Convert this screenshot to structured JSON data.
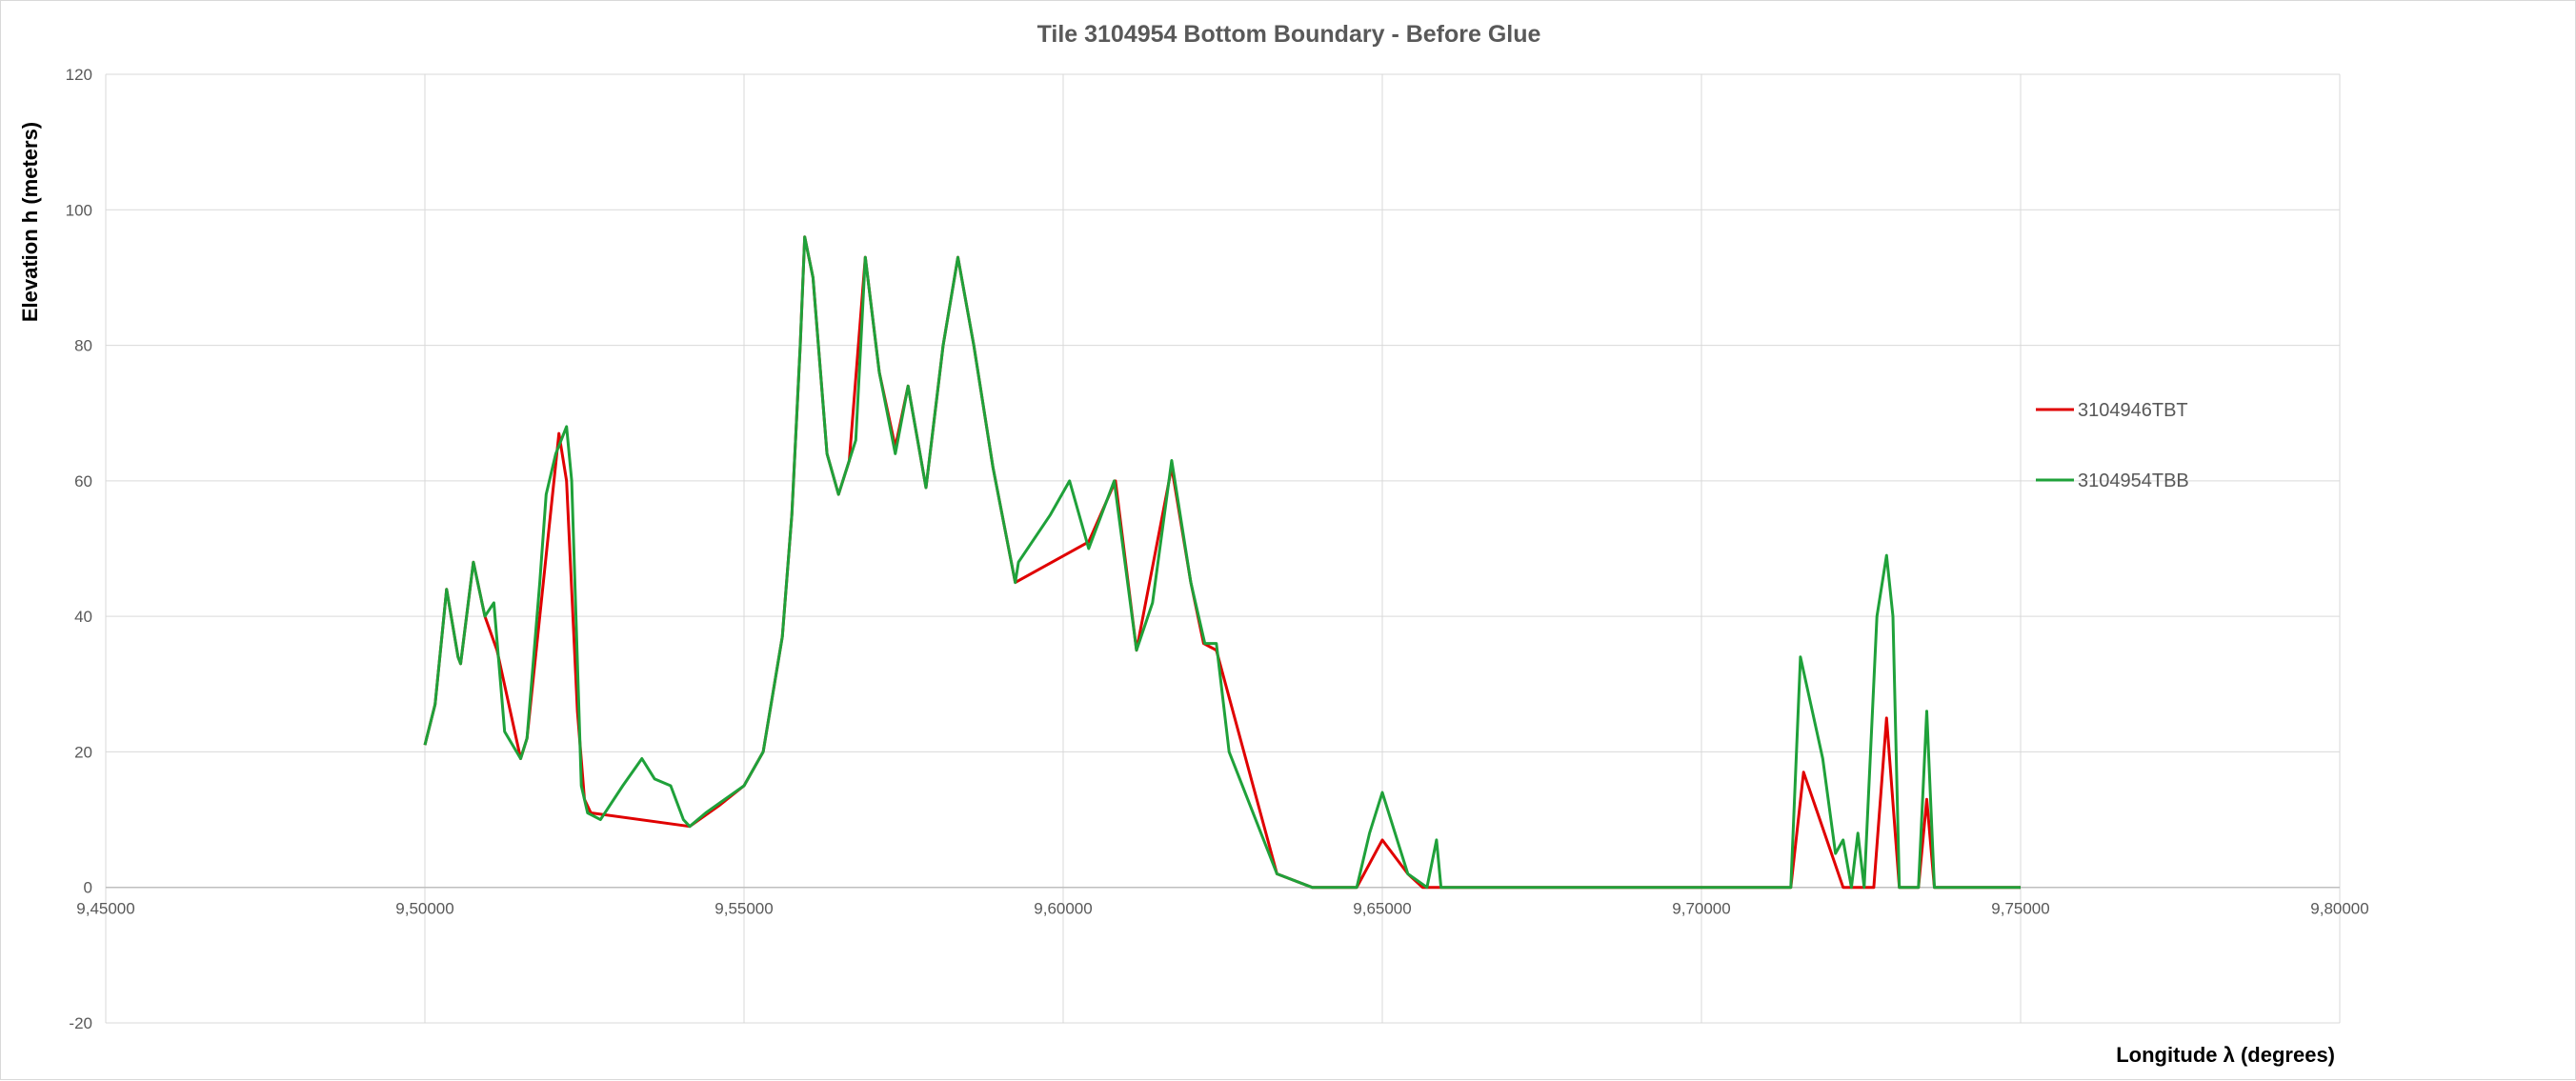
{
  "chart_data": {
    "type": "line",
    "title": "Tile 3104954 Bottom  Boundary - Before Glue",
    "xlabel": "Longitude λ (degrees)",
    "ylabel": "Elevation h  (meters)",
    "xlim": [
      9.45,
      9.8
    ],
    "ylim": [
      -20,
      120
    ],
    "x_ticks": [
      9.45,
      9.5,
      9.55,
      9.6,
      9.65,
      9.7,
      9.75,
      9.8
    ],
    "x_tick_labels": [
      "9,45000",
      "9,50000",
      "9,55000",
      "9,60000",
      "9,65000",
      "9,70000",
      "9,75000",
      "9,80000"
    ],
    "y_ticks": [
      -20,
      0,
      20,
      40,
      60,
      80,
      100,
      120
    ],
    "y_tick_labels": [
      "-20",
      "0",
      "20",
      "40",
      "60",
      "80",
      "100",
      "120"
    ],
    "grid": true,
    "legend_position": "right",
    "series": [
      {
        "name": "3104946TBT",
        "color": "#e00000",
        "points": [
          [
            9.5,
            21
          ],
          [
            9.5016,
            27
          ],
          [
            9.5034,
            44
          ],
          [
            9.5052,
            34
          ],
          [
            9.5056,
            33
          ],
          [
            9.5076,
            48
          ],
          [
            9.5094,
            40
          ],
          [
            9.5113,
            35
          ],
          [
            9.515,
            19
          ],
          [
            9.516,
            22
          ],
          [
            9.521,
            67
          ],
          [
            9.5222,
            60
          ],
          [
            9.5239,
            26
          ],
          [
            9.525,
            13
          ],
          [
            9.526,
            11
          ],
          [
            9.5415,
            9
          ],
          [
            9.546,
            12
          ],
          [
            9.55,
            15
          ],
          [
            9.553,
            20
          ],
          [
            9.556,
            37
          ],
          [
            9.5575,
            55
          ],
          [
            9.5588,
            80
          ],
          [
            9.5595,
            96
          ],
          [
            9.5608,
            90
          ],
          [
            9.563,
            64
          ],
          [
            9.5648,
            58
          ],
          [
            9.5665,
            63
          ],
          [
            9.569,
            93
          ],
          [
            9.5712,
            76
          ],
          [
            9.5737,
            65
          ],
          [
            9.5757,
            74
          ],
          [
            9.5785,
            59
          ],
          [
            9.5812,
            80
          ],
          [
            9.5835,
            93
          ],
          [
            9.586,
            80
          ],
          [
            9.589,
            62
          ],
          [
            9.5925,
            45
          ],
          [
            9.604,
            51
          ],
          [
            9.6082,
            60
          ],
          [
            9.6115,
            35
          ],
          [
            9.617,
            62
          ],
          [
            9.62,
            45
          ],
          [
            9.622,
            36
          ],
          [
            9.624,
            35
          ],
          [
            9.6335,
            2
          ],
          [
            9.639,
            0
          ],
          [
            9.646,
            0
          ],
          [
            9.65,
            7
          ],
          [
            9.654,
            2
          ],
          [
            9.6563,
            0
          ],
          [
            9.714,
            0
          ],
          [
            9.716,
            17
          ],
          [
            9.7222,
            0
          ],
          [
            9.727,
            0
          ],
          [
            9.729,
            25
          ],
          [
            9.731,
            0
          ],
          [
            9.734,
            0
          ],
          [
            9.7353,
            13
          ],
          [
            9.7365,
            0
          ],
          [
            9.75,
            0
          ]
        ]
      },
      {
        "name": "3104954TBB",
        "color": "#1fa13a",
        "points": [
          [
            9.5,
            21
          ],
          [
            9.5016,
            27
          ],
          [
            9.5034,
            44
          ],
          [
            9.5052,
            34
          ],
          [
            9.5056,
            33
          ],
          [
            9.5076,
            48
          ],
          [
            9.5094,
            40
          ],
          [
            9.5108,
            42
          ],
          [
            9.5125,
            23
          ],
          [
            9.515,
            19
          ],
          [
            9.516,
            22
          ],
          [
            9.518,
            45
          ],
          [
            9.519,
            58
          ],
          [
            9.5205,
            64
          ],
          [
            9.5222,
            68
          ],
          [
            9.523,
            60
          ],
          [
            9.5245,
            15
          ],
          [
            9.5255,
            11
          ],
          [
            9.5275,
            10
          ],
          [
            9.531,
            15
          ],
          [
            9.534,
            19
          ],
          [
            9.536,
            16
          ],
          [
            9.5385,
            15
          ],
          [
            9.5405,
            10
          ],
          [
            9.5415,
            9
          ],
          [
            9.544,
            11
          ],
          [
            9.55,
            15
          ],
          [
            9.553,
            20
          ],
          [
            9.556,
            37
          ],
          [
            9.5575,
            55
          ],
          [
            9.5588,
            80
          ],
          [
            9.5595,
            96
          ],
          [
            9.5608,
            90
          ],
          [
            9.563,
            64
          ],
          [
            9.5648,
            58
          ],
          [
            9.5665,
            63
          ],
          [
            9.5675,
            66
          ],
          [
            9.569,
            93
          ],
          [
            9.5712,
            76
          ],
          [
            9.5737,
            64
          ],
          [
            9.5757,
            74
          ],
          [
            9.5785,
            59
          ],
          [
            9.5812,
            80
          ],
          [
            9.5835,
            93
          ],
          [
            9.586,
            80
          ],
          [
            9.589,
            62
          ],
          [
            9.5925,
            45
          ],
          [
            9.593,
            48
          ],
          [
            9.598,
            55
          ],
          [
            9.601,
            60
          ],
          [
            9.604,
            50
          ],
          [
            9.608,
            60
          ],
          [
            9.6115,
            35
          ],
          [
            9.614,
            42
          ],
          [
            9.617,
            63
          ],
          [
            9.62,
            45
          ],
          [
            9.6222,
            36
          ],
          [
            9.624,
            36
          ],
          [
            9.626,
            20
          ],
          [
            9.6335,
            2
          ],
          [
            9.639,
            0
          ],
          [
            9.646,
            0
          ],
          [
            9.648,
            8
          ],
          [
            9.65,
            14
          ],
          [
            9.654,
            2
          ],
          [
            9.657,
            0
          ],
          [
            9.6585,
            7
          ],
          [
            9.6592,
            0
          ],
          [
            9.714,
            0
          ],
          [
            9.7155,
            34
          ],
          [
            9.719,
            19
          ],
          [
            9.721,
            5
          ],
          [
            9.7222,
            7
          ],
          [
            9.7235,
            0
          ],
          [
            9.7245,
            8
          ],
          [
            9.7255,
            0
          ],
          [
            9.7275,
            40
          ],
          [
            9.729,
            49
          ],
          [
            9.73,
            40
          ],
          [
            9.731,
            0
          ],
          [
            9.734,
            0
          ],
          [
            9.7353,
            26
          ],
          [
            9.7365,
            0
          ],
          [
            9.75,
            0
          ]
        ]
      }
    ]
  }
}
